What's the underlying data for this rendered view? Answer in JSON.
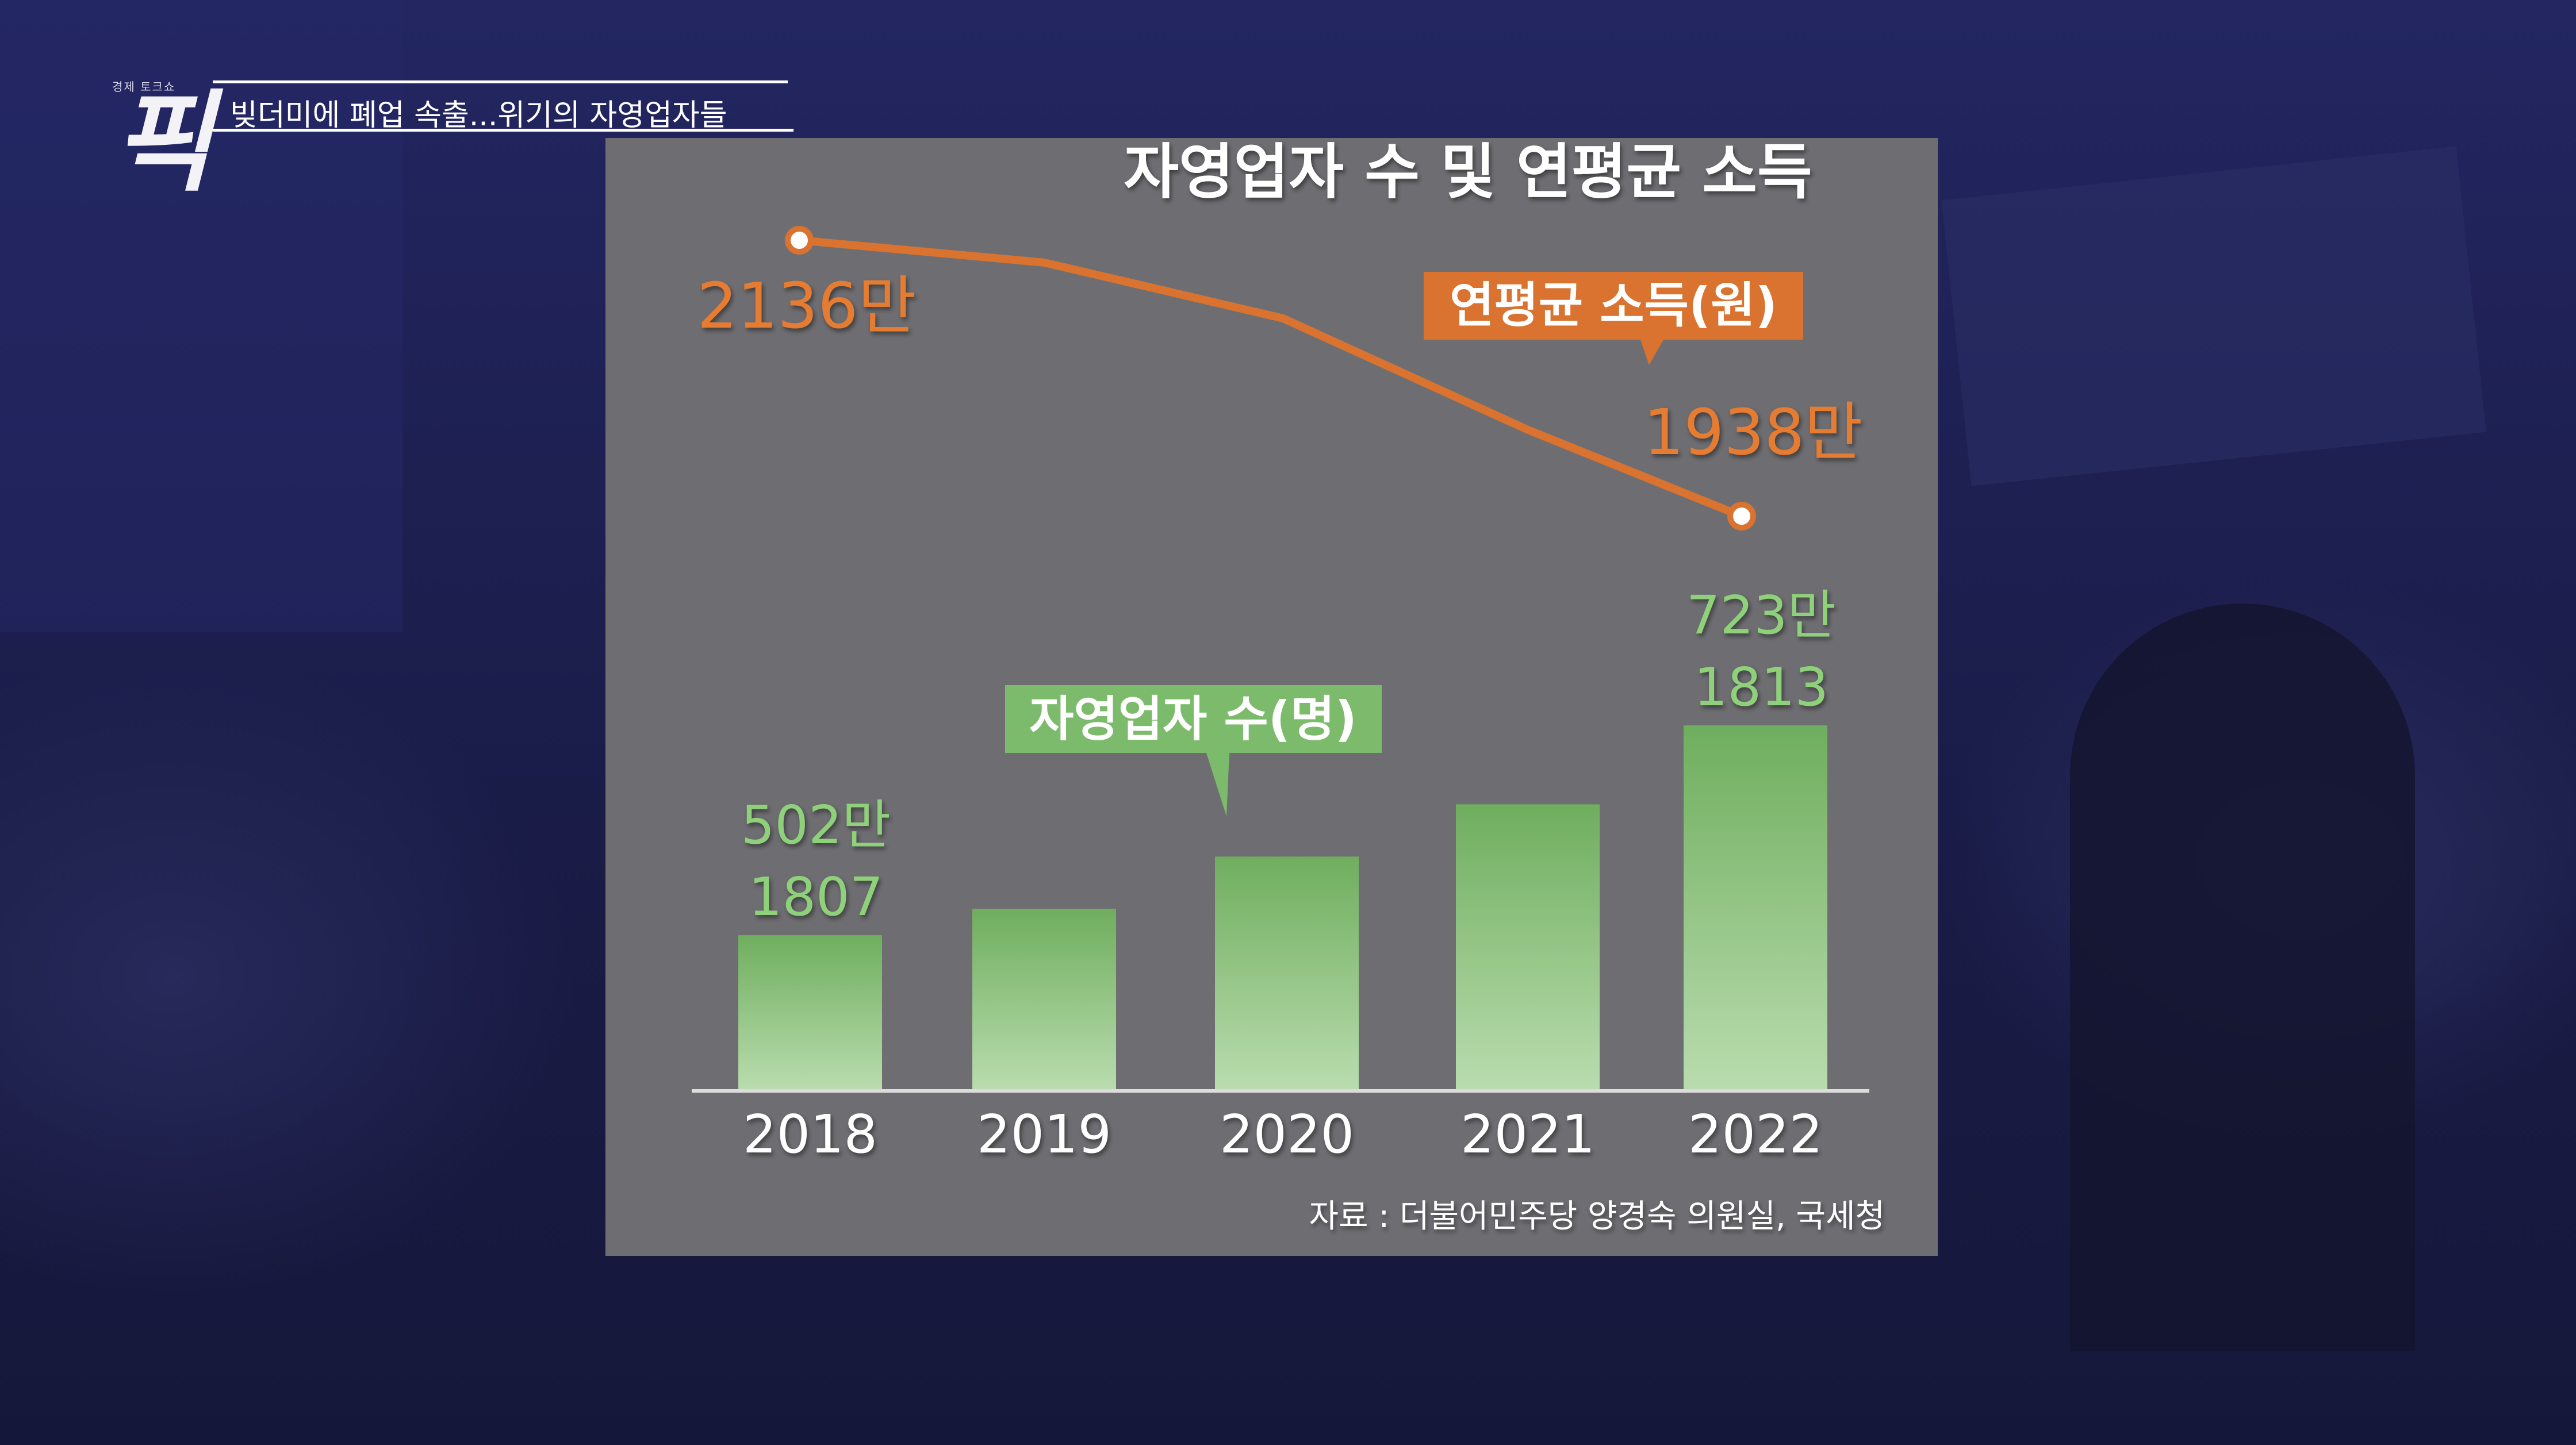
{
  "headline": "빚더미에 폐업 속출...위기의 자영업자들",
  "logo": {
    "top_text": "경제 토크쇼",
    "mark": "픽"
  },
  "chart_data": {
    "type": "bar+line",
    "title": "자영업자 수 및 연평균 소득",
    "categories": [
      "2018",
      "2019",
      "2020",
      "2021",
      "2022"
    ],
    "bars": {
      "name": "자영업자 수(명)",
      "values": [
        5021807,
        5300000,
        5850000,
        6400000,
        7231813
      ],
      "labels": [
        {
          "index": 0,
          "line1": "502만",
          "line2": "1807"
        },
        {
          "index": 4,
          "line1": "723만",
          "line2": "1813"
        }
      ]
    },
    "line": {
      "name": "연평균 소득(원)",
      "values": [
        21360000,
        21200000,
        20800000,
        20000000,
        19380000
      ],
      "labels": [
        {
          "index": 0,
          "text": "2136만"
        },
        {
          "index": 4,
          "text": "1938만"
        }
      ]
    },
    "source": "자료 : 더불어민주당 양경숙 의원실, 국세청",
    "colors": {
      "bar": "#7dbb6c",
      "line": "#d9732f",
      "bar_label": "#8fd07a",
      "line_label": "#e67b30",
      "panel": "#6e6e72"
    }
  }
}
